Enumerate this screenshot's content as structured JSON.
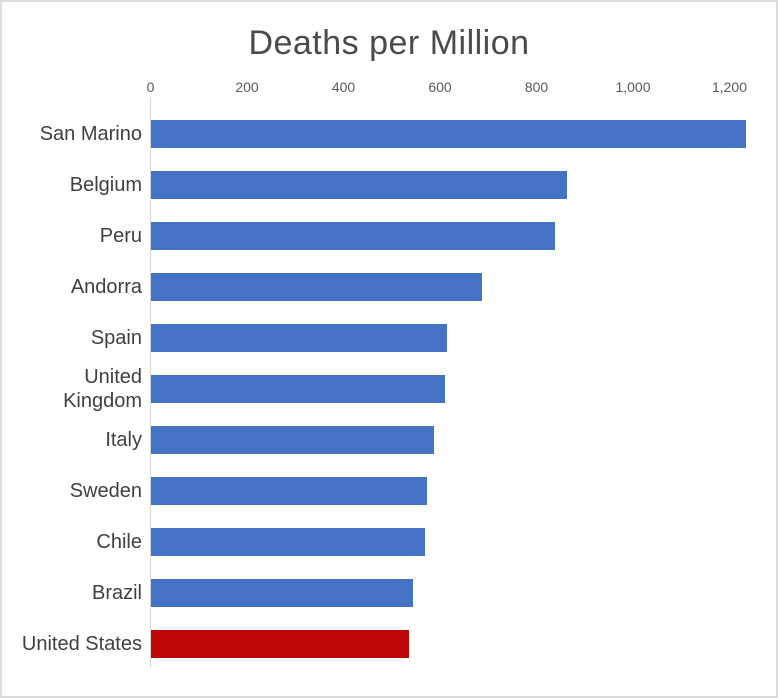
{
  "title": "Deaths per Million",
  "colors": {
    "bar_default": "#4472C4",
    "bar_highlight": "#C00808",
    "axis_line": "#D6D6D6",
    "title_text": "#4A4A4A",
    "tick_text": "#595959",
    "label_text": "#404040"
  },
  "chart_data": {
    "type": "bar",
    "orientation": "horizontal",
    "title": "Deaths per Million",
    "categories": [
      "San Marino",
      "Belgium",
      "Peru",
      "Andorra",
      "Spain",
      "United Kingdom",
      "Italy",
      "Sweden",
      "Chile",
      "Brazil",
      "United States"
    ],
    "values": [
      1233,
      862,
      838,
      686,
      614,
      610,
      587,
      573,
      568,
      544,
      534
    ],
    "highlighted_category": "United States",
    "xlabel": "",
    "ylabel": "",
    "xlim": [
      0,
      1200
    ],
    "x_ticks": [
      0,
      200,
      400,
      600,
      800,
      1000,
      1200
    ],
    "x_tick_labels": [
      "0",
      "200",
      "400",
      "600",
      "800",
      "1,000",
      "1,200"
    ],
    "grid": false,
    "legend": false
  }
}
